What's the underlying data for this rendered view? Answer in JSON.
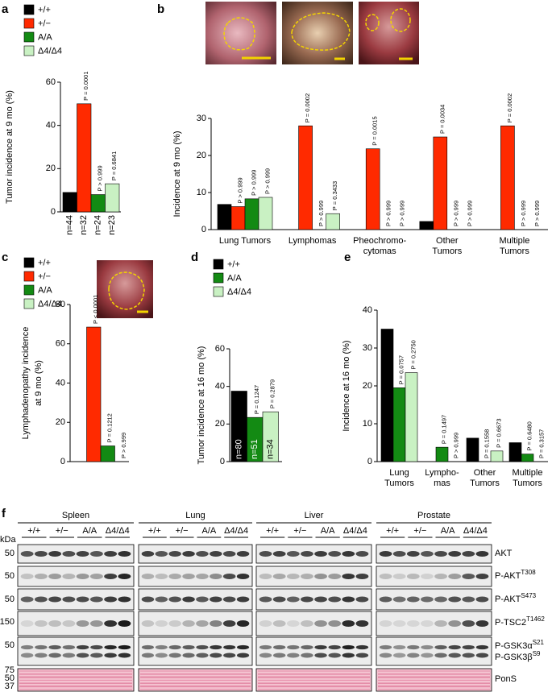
{
  "chart_data": [
    {
      "type": "bar",
      "panel": "a",
      "ylabel": "Tumor incidence at 9 mo (%)",
      "legend": [
        "+/+",
        "+/−",
        "A/A",
        "Δ4/Δ4"
      ],
      "colors": [
        "#000000",
        "#ff2a00",
        "#138a13",
        "#c9f1c3"
      ],
      "categories": [
        "n=44",
        "n=32",
        "n=24",
        "n=23"
      ],
      "values": [
        9,
        50,
        8,
        13
      ],
      "p_values": [
        null,
        "P = 0.0001",
        "P > 0.999",
        "P = 0.6841"
      ],
      "ylim": [
        0,
        60
      ],
      "yticks": [
        0,
        20,
        40,
        60
      ]
    },
    {
      "type": "grouped-bar",
      "panel": "b",
      "ylabel": "Incidence at 9 mo (%)",
      "categories": [
        [
          "Lung Tumors"
        ],
        [
          "Lymphomas"
        ],
        [
          "Pheochromo-",
          "cytomas"
        ],
        [
          "Other",
          "Tumors"
        ],
        [
          "Multiple",
          "Tumors"
        ]
      ],
      "series": [
        {
          "name": "+/+",
          "color": "#000000",
          "values": [
            6.8,
            0,
            0,
            2.2,
            0
          ],
          "p_values": [
            null,
            null,
            null,
            null,
            null
          ]
        },
        {
          "name": "+/−",
          "color": "#ff2a00",
          "values": [
            6.2,
            28,
            21.8,
            25,
            28
          ],
          "p_values": [
            "P > 0.999",
            "P = 0.0002",
            "P = 0.0015",
            "P = 0.0034",
            "P = 0.0002"
          ]
        },
        {
          "name": "A/A",
          "color": "#138a13",
          "values": [
            8.3,
            0,
            0,
            0,
            0
          ],
          "p_values": [
            "P > 0.999",
            "P > 0.999",
            "P > 0.999",
            "P > 0.999",
            "P > 0.999"
          ]
        },
        {
          "name": "Δ4/Δ4",
          "color": "#c9f1c3",
          "values": [
            8.7,
            4.3,
            0,
            0,
            0
          ],
          "p_values": [
            "P > 0.999",
            "P = 0.3433",
            "P > 0.999",
            "P > 0.999",
            "P > 0.999"
          ]
        }
      ],
      "ylim": [
        0,
        30
      ],
      "yticks": [
        0,
        10,
        20,
        30
      ]
    },
    {
      "type": "bar",
      "panel": "c",
      "ylabel": [
        "Lymphadenopathy incidence",
        "at 9 mo (%)"
      ],
      "legend": [
        "+/+",
        "+/−",
        "A/A",
        "Δ4/Δ4"
      ],
      "colors": [
        "#000000",
        "#ff2a00",
        "#138a13",
        "#c9f1c3"
      ],
      "values": [
        0,
        68.5,
        8,
        0
      ],
      "p_values": [
        null,
        "P < 0.0001",
        "P = 0.1212",
        "P > 0.999"
      ],
      "ylim": [
        0,
        80
      ],
      "yticks": [
        0,
        20,
        40,
        60,
        80
      ]
    },
    {
      "type": "bar",
      "panel": "d",
      "ylabel": "Tumor incidence at 16 mo (%)",
      "legend": [
        "+/+",
        "A/A",
        "Δ4/Δ4"
      ],
      "colors": [
        "#000000",
        "#138a13",
        "#c9f1c3"
      ],
      "n_labels": [
        "n=80",
        "n=51",
        "n=34"
      ],
      "values": [
        37.5,
        23.5,
        26.5
      ],
      "p_values": [
        null,
        "P = 0.1247",
        "P = 0.2879"
      ],
      "ylim": [
        0,
        60
      ],
      "yticks": [
        0,
        20,
        40,
        60
      ]
    },
    {
      "type": "grouped-bar",
      "panel": "e",
      "ylabel": "Incidence at 16 mo (%)",
      "categories": [
        [
          "Lung",
          "Tumors"
        ],
        [
          "Lympho-",
          "mas"
        ],
        [
          "Other",
          "Tumors"
        ],
        [
          "Multiple",
          "Tumors"
        ]
      ],
      "series": [
        {
          "name": "+/+",
          "color": "#000000",
          "values": [
            35,
            0,
            6.2,
            5
          ],
          "p_values": [
            null,
            null,
            null,
            null
          ]
        },
        {
          "name": "A/A",
          "color": "#138a13",
          "values": [
            19.5,
            3.8,
            0,
            2
          ],
          "p_values": [
            "P = 0.0757",
            "P = 0.1497",
            "P = 0.1558",
            "P = 0.6480"
          ]
        },
        {
          "name": "Δ4/Δ4",
          "color": "#c9f1c3",
          "values": [
            23.5,
            0,
            2.8,
            0
          ],
          "p_values": [
            "P = 0.2750",
            "P > 0.999",
            "P = 0.6673",
            "P = 0.3157"
          ]
        }
      ],
      "ylim": [
        0,
        40
      ],
      "yticks": [
        0,
        10,
        20,
        30,
        40
      ]
    }
  ],
  "blot": {
    "panel": "f",
    "tissues": [
      "Spleen",
      "Lung",
      "Liver",
      "Prostate"
    ],
    "genotypes": [
      "+/+",
      "+/−",
      "A/A",
      "Δ4/Δ4"
    ],
    "kda_unit": "kDa",
    "kda": [
      50,
      50,
      50,
      150,
      50,
      75,
      50,
      37
    ],
    "rows": [
      {
        "text": "AKT"
      },
      {
        "text": "P-AKT",
        "sup": "T308"
      },
      {
        "text": "P-AKT",
        "sup": "S473"
      },
      {
        "text": "P-TSC2",
        "sup": "T1462"
      },
      {
        "text": "P-GSK3α",
        "sup": "S21"
      },
      {
        "text": "P-GSK3β",
        "sup": "S9"
      },
      {
        "text": "PonS"
      }
    ]
  }
}
